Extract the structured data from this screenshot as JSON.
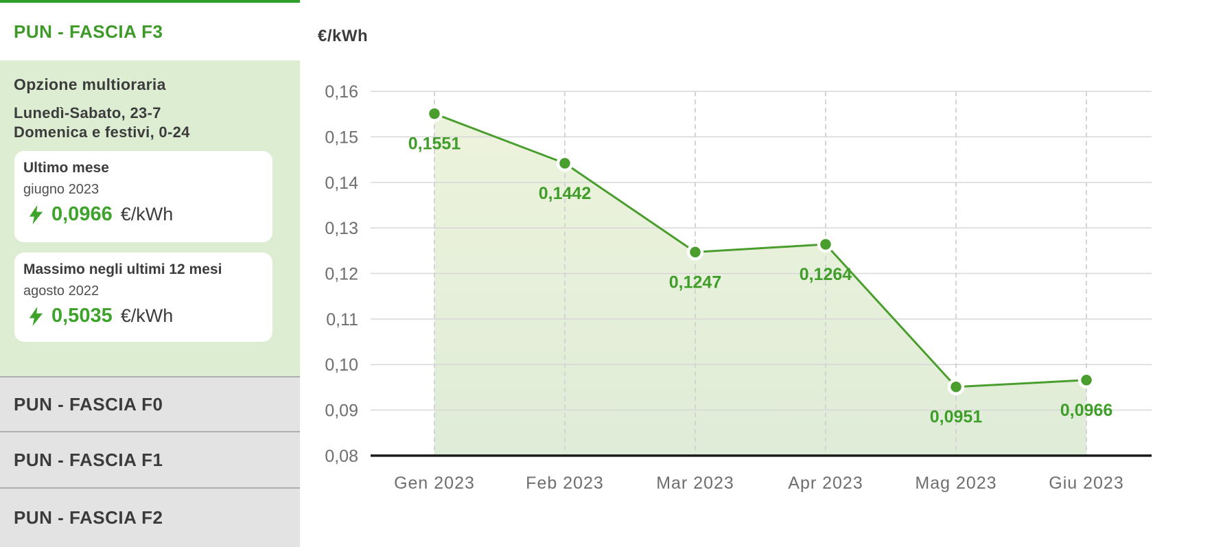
{
  "colors": {
    "accent_green": "#3e9a28",
    "topbar_green": "#2f9e28",
    "panel_green": "#dcedd2",
    "line_green": "#4a9e2d",
    "label_green": "#3f9e2a",
    "value_green": "#3ea32b",
    "area_fill_top": "#edf3dc",
    "area_fill_bottom": "#dfecd7",
    "grid_gray": "#d7d7d7",
    "dash_gray": "#d4d4d4",
    "axis_black": "#1a1a1a",
    "tick_gray": "#6e6e6e",
    "tab_bg": "#e3e3e3",
    "dark_text": "#3c3c3c"
  },
  "sidebar": {
    "active_tab": "PUN - FASCIA F3",
    "option": {
      "title": "Opzione multioraria",
      "line1": "Lunedì-Sabato, 23-7",
      "line2": "Domenica e festivi, 0-24"
    },
    "cards": [
      {
        "title": "Ultimo mese",
        "subtitle": "giugno 2023",
        "value": "0,0966",
        "unit": "€/kWh"
      },
      {
        "title": "Massimo negli ultimi 12 mesi",
        "subtitle": "agosto 2022",
        "value": "0,5035",
        "unit": "€/kWh"
      }
    ],
    "tabs": [
      {
        "label": "PUN - FASCIA F0"
      },
      {
        "label": "PUN - FASCIA F1"
      },
      {
        "label": "PUN - FASCIA F2"
      }
    ]
  },
  "chart_data": {
    "type": "line",
    "title": "€/kWh",
    "ylabel": "€/kWh",
    "xlabel": "",
    "categories": [
      "Gen 2023",
      "Feb 2023",
      "Mar 2023",
      "Apr 2023",
      "Mag 2023",
      "Giu 2023"
    ],
    "values": [
      0.1551,
      0.1442,
      0.1247,
      0.1264,
      0.0951,
      0.0966
    ],
    "point_labels": [
      "0,1551",
      "0,1442",
      "0,1247",
      "0,1264",
      "0,0951",
      "0,0966"
    ],
    "ylim": [
      0.08,
      0.16
    ],
    "ytick_step": 0.01,
    "ytick_labels_top_to_bottom": [
      "0,16",
      "0,15",
      "0,14",
      "0,13",
      "0,12",
      "0,11",
      "0,10",
      "0,09",
      "0,08"
    ],
    "grid": true,
    "vertical_gridlines": "dashed",
    "area_fill": true,
    "legend_position": "none"
  }
}
